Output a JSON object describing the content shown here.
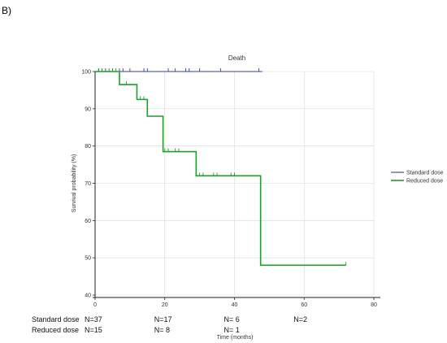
{
  "panel_label": "B)",
  "chart_data": {
    "type": "line",
    "title": "Death",
    "xlabel": "Time (months)",
    "ylabel": "Survival probability (%)",
    "xlim": [
      0,
      80
    ],
    "ylim": [
      40,
      100
    ],
    "xticks": [
      0,
      20,
      40,
      60,
      80
    ],
    "yticks": [
      40,
      50,
      60,
      70,
      80,
      90,
      100
    ],
    "grid": true,
    "legend_position": "right",
    "series": [
      {
        "name": "Standard dose",
        "color": "#3a3aa8",
        "steps": [
          [
            0,
            100
          ],
          [
            48,
            100
          ]
        ],
        "censored": [
          1,
          2,
          3,
          5,
          7,
          8,
          10,
          14,
          15,
          21,
          23,
          26,
          27,
          30,
          36,
          47
        ]
      },
      {
        "name": "Reduced dose",
        "color": "#1e9e2a",
        "steps": [
          [
            0,
            100
          ],
          [
            7,
            96.5
          ],
          [
            12,
            92.5
          ],
          [
            15,
            88
          ],
          [
            19.5,
            78.5
          ],
          [
            29,
            72
          ],
          [
            47.5,
            48
          ],
          [
            72,
            48
          ]
        ],
        "censored": [
          1,
          2,
          4,
          5,
          6,
          9,
          13,
          14,
          20,
          21,
          23,
          24,
          30,
          31,
          34,
          35,
          39,
          40,
          72
        ]
      }
    ]
  },
  "risk_table": {
    "rows": [
      {
        "label": "Standard dose",
        "counts": [
          {
            "x": 0,
            "text": "N=37"
          },
          {
            "x": 20,
            "text": "N=17"
          },
          {
            "x": 40,
            "text": "N= 6"
          },
          {
            "x": 60,
            "text": "N=2"
          }
        ]
      },
      {
        "label": "Reduced dose",
        "counts": [
          {
            "x": 0,
            "text": "N=15"
          },
          {
            "x": 20,
            "text": "N= 8"
          },
          {
            "x": 40,
            "text": "N= 1"
          }
        ]
      }
    ]
  }
}
